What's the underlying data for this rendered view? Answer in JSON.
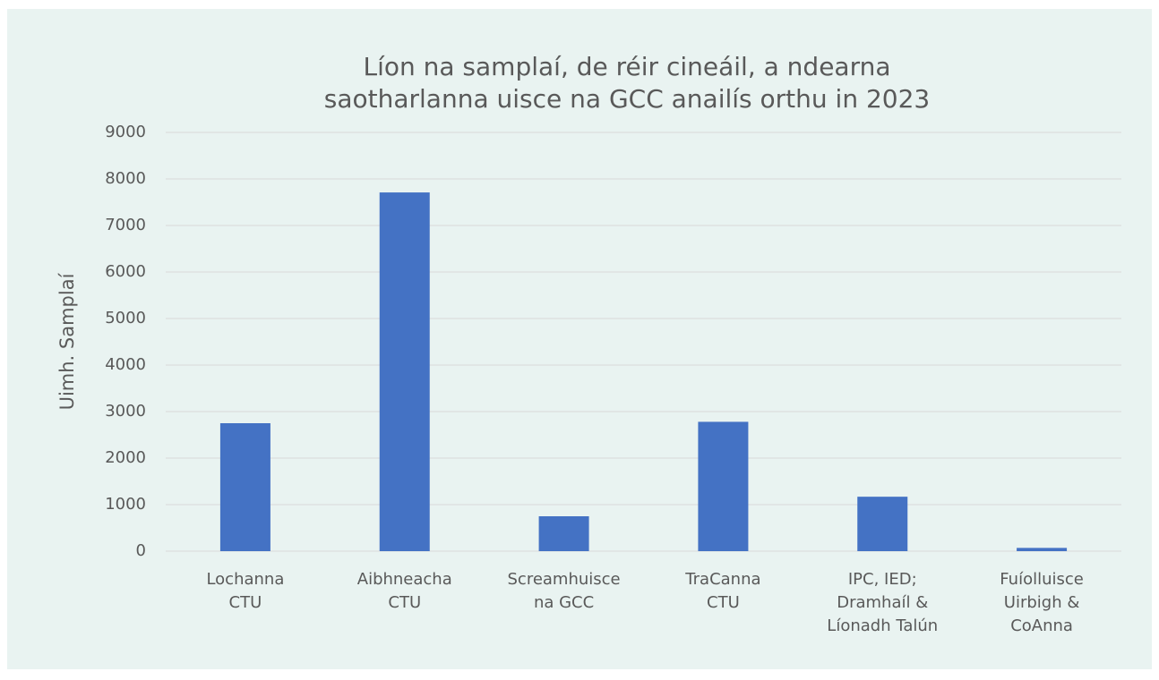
{
  "chart_data": {
    "type": "bar",
    "title": [
      "Líon na samplaí, de réir cineáil, a ndearna",
      "saotharlanna uisce na GCC anailís orthu in 2023"
    ],
    "ylabel": "Uimh. Samplaí",
    "categories": [
      [
        "Lochanna",
        "CTU"
      ],
      [
        "Aibhneacha",
        "CTU"
      ],
      [
        "Screamhuisce",
        "na GCC"
      ],
      [
        "TraCanna",
        "CTU"
      ],
      [
        "IPC, IED;",
        "Dramhaíl &",
        "Líonadh Talún"
      ],
      [
        "Fuíolluisce",
        "Uirbigh &",
        "CoAnna"
      ]
    ],
    "values": [
      2750,
      7710,
      750,
      2780,
      1170,
      70
    ],
    "color": "#4472c4",
    "ylim": [
      0,
      9000
    ],
    "yticks": [
      0,
      1000,
      2000,
      3000,
      4000,
      5000,
      6000,
      7000,
      8000,
      9000
    ],
    "grid": true
  }
}
